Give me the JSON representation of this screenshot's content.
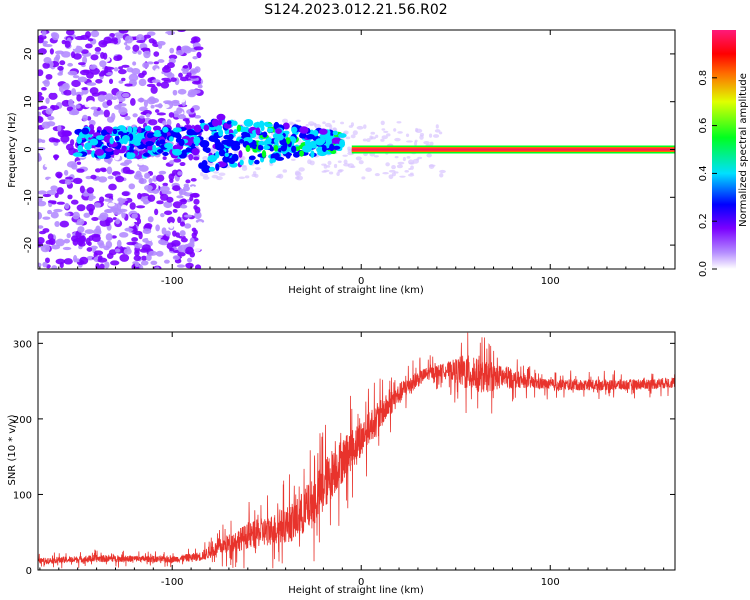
{
  "title": "S124.2023.012.21.56.R02",
  "colors": {
    "snr_line": "#e8332c",
    "spectrum_line": "#ff1a55",
    "axes": "#000000"
  },
  "chart_data": [
    {
      "id": "spectrogram",
      "type": "heatmap",
      "xlabel": "Height of straight line (km)",
      "ylabel": "Frequency (Hz)",
      "xlim": [
        -171,
        166
      ],
      "ylim": [
        -25,
        25
      ],
      "xticks": [
        -100,
        0,
        100
      ],
      "xtick_labels": [
        "-100",
        "0",
        "100"
      ],
      "yticks": [
        -20,
        -10,
        0,
        10,
        20
      ],
      "ytick_labels": [
        "-20",
        "-10",
        "0",
        "10",
        "20"
      ],
      "colorbar": {
        "label": "Normalized spectral amplitude",
        "range": [
          0,
          1
        ],
        "ticks": [
          0.0,
          0.2,
          0.4,
          0.6,
          0.8
        ],
        "tick_labels": [
          "0.0",
          "0.2",
          "0.4",
          "0.6",
          "0.8"
        ],
        "colormap": "white-violet-blue-cyan-green-yellow-red-pink"
      },
      "description_regions": [
        {
          "x_range": [
            -171,
            -85
          ],
          "freq_spread": 25,
          "amplitude": 0.15
        },
        {
          "x_range": [
            -85,
            -10
          ],
          "freq_spread": 5,
          "amplitude": 0.35
        },
        {
          "x_range": [
            -10,
            166
          ],
          "freq_spread": 0.6,
          "amplitude": 0.9
        }
      ],
      "grid": false
    },
    {
      "id": "snr",
      "type": "line",
      "xlabel": "Height of straight line (km)",
      "ylabel": "SNR (10 * v/v)",
      "xlim": [
        -171,
        166
      ],
      "ylim": [
        0,
        315
      ],
      "xticks": [
        -100,
        0,
        100
      ],
      "xtick_labels": [
        "-100",
        "0",
        "100"
      ],
      "yticks": [
        0,
        100,
        200,
        300
      ],
      "ytick_labels": [
        "0",
        "100",
        "200",
        "300"
      ],
      "grid": false,
      "envelope": {
        "x": [
          -171,
          -140,
          -120,
          -100,
          -85,
          -75,
          -60,
          -45,
          -35,
          -25,
          -15,
          -5,
          5,
          15,
          25,
          35,
          45,
          55,
          65,
          75,
          85,
          100,
          120,
          140,
          166
        ],
        "y": [
          12,
          15,
          15,
          14,
          18,
          30,
          45,
          55,
          65,
          90,
          130,
          160,
          190,
          220,
          245,
          260,
          265,
          262,
          255,
          255,
          250,
          245,
          245,
          245,
          248
        ],
        "noise": [
          6,
          8,
          7,
          7,
          10,
          18,
          28,
          35,
          45,
          55,
          55,
          45,
          35,
          28,
          20,
          15,
          15,
          40,
          35,
          25,
          15,
          12,
          12,
          12,
          12
        ]
      }
    }
  ]
}
